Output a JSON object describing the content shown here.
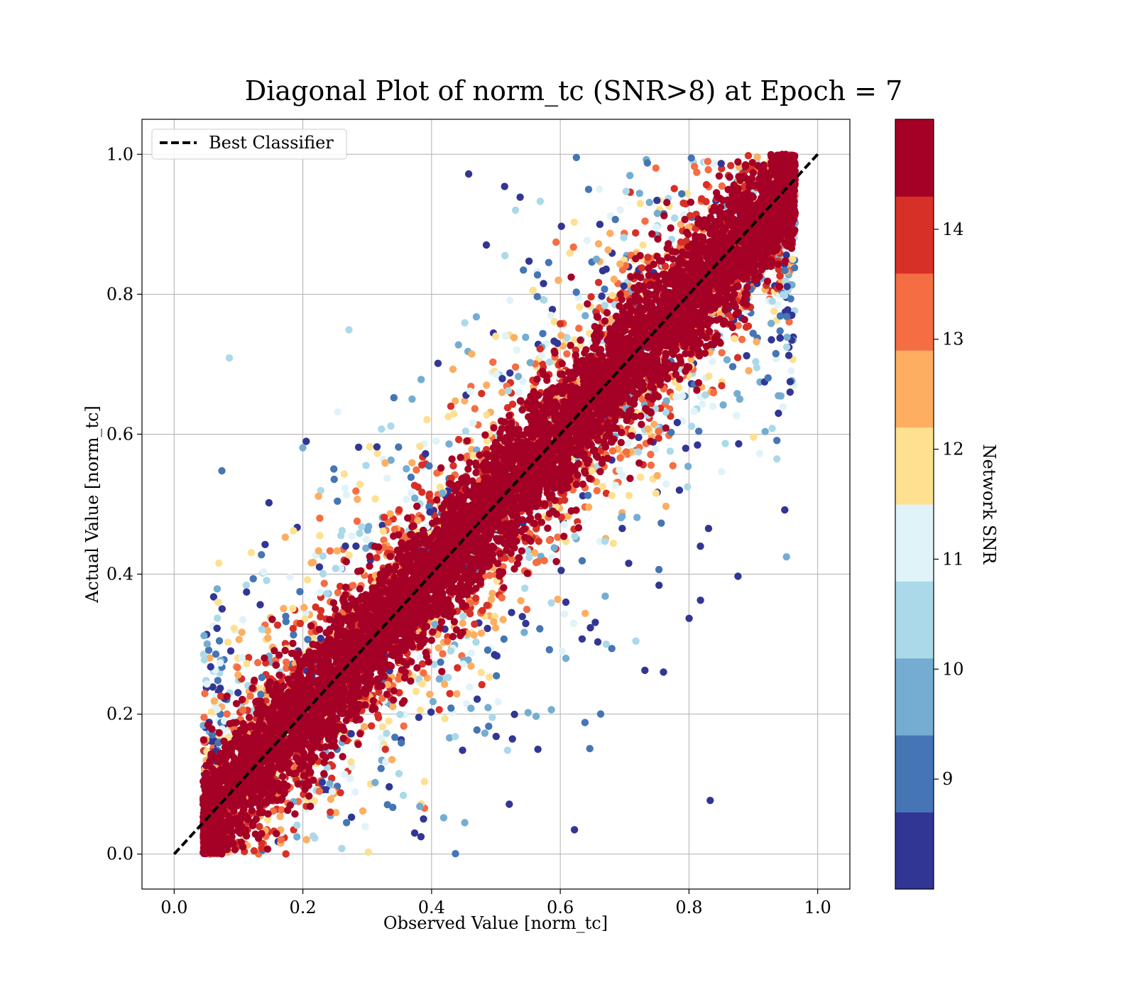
{
  "chart_data": {
    "type": "scatter",
    "title": "Diagonal Plot of norm_tc (SNR>8) at Epoch = 7",
    "xlabel": "Observed Value [norm_tc]",
    "ylabel": "Actual Value [norm_tc]",
    "xlim": [
      -0.05,
      1.05
    ],
    "ylim": [
      -0.05,
      1.05
    ],
    "xticks": [
      0.0,
      0.2,
      0.4,
      0.6,
      0.8,
      1.0
    ],
    "yticks": [
      0.0,
      0.2,
      0.4,
      0.6,
      0.8,
      1.0
    ],
    "xtick_labels": [
      "0.0",
      "0.2",
      "0.4",
      "0.6",
      "0.8",
      "1.0"
    ],
    "ytick_labels": [
      "0.0",
      "0.2",
      "0.4",
      "0.6",
      "0.8",
      "1.0"
    ],
    "grid": true,
    "legend": {
      "location": "top-left",
      "entries": [
        "Best Classifier"
      ]
    },
    "reference_line": {
      "name": "Best Classifier",
      "x": [
        0.0,
        1.0
      ],
      "y": [
        0.0,
        1.0
      ],
      "style": "dashed",
      "color": "#000000"
    },
    "colorbar": {
      "label": "Network SNR",
      "range": [
        8.0,
        15.0
      ],
      "ticks": [
        9,
        10,
        11,
        12,
        13,
        14
      ],
      "tick_labels": [
        "9",
        "10",
        "11",
        "12",
        "13",
        "14"
      ],
      "colors": [
        "#313695",
        "#4575b4",
        "#74add1",
        "#abd9e9",
        "#e0f3f8",
        "#fee090",
        "#fdae61",
        "#f46d43",
        "#d73027",
        "#a50026"
      ],
      "bins": [
        8.0,
        8.7,
        9.4,
        10.1,
        10.8,
        11.5,
        12.2,
        12.9,
        13.6,
        14.3,
        15.0
      ]
    },
    "scatter_description": {
      "point_count_approx": 20000,
      "x_range": [
        0.04,
        0.97
      ],
      "y_range": [
        0.0,
        1.0
      ],
      "trend": "points cluster along y = x; high SNR points tightly near diagonal, low SNR points scattered widely"
    }
  }
}
